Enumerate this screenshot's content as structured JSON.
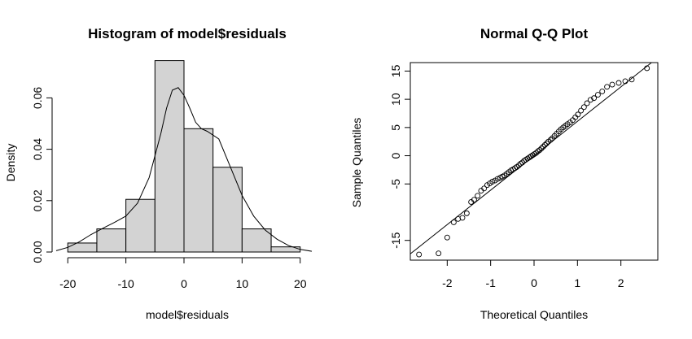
{
  "chart_data": [
    {
      "type": "histogram",
      "title": "Histogram of model$residuals",
      "xlabel": "model$residuals",
      "ylabel": "Density",
      "bins": [
        {
          "start": -20,
          "end": -15,
          "density": 0.0035
        },
        {
          "start": -15,
          "end": -10,
          "density": 0.009
        },
        {
          "start": -10,
          "end": -5,
          "density": 0.0205
        },
        {
          "start": -5,
          "end": 0,
          "density": 0.0745
        },
        {
          "start": 0,
          "end": 5,
          "density": 0.048
        },
        {
          "start": 5,
          "end": 10,
          "density": 0.033
        },
        {
          "start": 10,
          "end": 15,
          "density": 0.009
        },
        {
          "start": 15,
          "end": 20,
          "density": 0.002
        }
      ],
      "density_curve": {
        "x": [
          -22,
          -20,
          -18,
          -16,
          -14,
          -12,
          -10,
          -8,
          -6,
          -4,
          -3,
          -2,
          -1,
          0,
          1,
          2,
          3,
          4,
          6,
          8,
          10,
          12,
          14,
          16,
          18,
          20,
          22
        ],
        "y": [
          0.0005,
          0.0018,
          0.004,
          0.0068,
          0.0092,
          0.0115,
          0.014,
          0.019,
          0.029,
          0.046,
          0.056,
          0.063,
          0.064,
          0.061,
          0.056,
          0.0505,
          0.048,
          0.047,
          0.044,
          0.033,
          0.022,
          0.014,
          0.0085,
          0.005,
          0.0025,
          0.001,
          0.0003
        ]
      },
      "xticks": [
        "-20",
        "-10",
        "0",
        "10",
        "20"
      ],
      "xtick_values": [
        -20,
        -10,
        0,
        10,
        20
      ],
      "yticks": [
        "0.00",
        "0.02",
        "0.04",
        "0.06"
      ],
      "ytick_values": [
        0.0,
        0.02,
        0.04,
        0.06
      ],
      "xlim": [
        -22,
        22
      ],
      "ylim": [
        0,
        0.075
      ],
      "bar_color": "#d3d3d3",
      "grid": false
    },
    {
      "type": "scatter",
      "title": "Normal Q-Q Plot",
      "xlabel": "Theoretical Quantiles",
      "ylabel": "Sample Quantiles",
      "points": {
        "x": [
          -2.65,
          -2.2,
          -2.0,
          -1.85,
          -1.75,
          -1.65,
          -1.55,
          -1.45,
          -1.38,
          -1.3,
          -1.22,
          -1.15,
          -1.08,
          -1.02,
          -0.96,
          -0.9,
          -0.84,
          -0.78,
          -0.73,
          -0.68,
          -0.63,
          -0.58,
          -0.53,
          -0.48,
          -0.44,
          -0.4,
          -0.35,
          -0.31,
          -0.27,
          -0.23,
          -0.19,
          -0.15,
          -0.11,
          -0.07,
          -0.03,
          0.01,
          0.05,
          0.09,
          0.13,
          0.17,
          0.21,
          0.25,
          0.29,
          0.33,
          0.38,
          0.42,
          0.47,
          0.52,
          0.57,
          0.62,
          0.67,
          0.72,
          0.77,
          0.83,
          0.89,
          0.95,
          1.01,
          1.08,
          1.15,
          1.22,
          1.3,
          1.38,
          1.47,
          1.57,
          1.68,
          1.8,
          1.95,
          2.1,
          2.25,
          2.6
        ],
        "y": [
          -17.5,
          -17.3,
          -14.5,
          -11.8,
          -11.2,
          -11.0,
          -10.2,
          -8.2,
          -7.8,
          -7.1,
          -6.2,
          -5.8,
          -5.2,
          -4.9,
          -4.6,
          -4.4,
          -4.1,
          -3.9,
          -3.7,
          -3.5,
          -3.2,
          -2.9,
          -2.6,
          -2.4,
          -2.2,
          -2.0,
          -1.7,
          -1.4,
          -1.2,
          -0.9,
          -0.7,
          -0.5,
          -0.3,
          -0.1,
          0.1,
          0.3,
          0.5,
          0.8,
          1.0,
          1.3,
          1.6,
          1.9,
          2.2,
          2.5,
          2.8,
          3.1,
          3.5,
          3.9,
          4.3,
          4.7,
          5.0,
          5.3,
          5.6,
          5.9,
          6.3,
          6.8,
          7.3,
          8.0,
          8.6,
          9.3,
          9.9,
          10.2,
          10.8,
          11.4,
          12.2,
          12.6,
          12.9,
          13.2,
          13.5,
          15.5
        ],
        "marker": "open-circle"
      },
      "reference_line": {
        "intercept": 0.0,
        "slope": 6.1
      },
      "xticks": [
        "-2",
        "-1",
        "0",
        "1",
        "2"
      ],
      "xtick_values": [
        -2,
        -1,
        0,
        1,
        2
      ],
      "yticks": [
        "-15",
        "-5",
        "0",
        "5",
        "10",
        "15"
      ],
      "ytick_values": [
        -15,
        -5,
        0,
        5,
        10,
        15
      ],
      "xlim": [
        -2.85,
        2.85
      ],
      "ylim": [
        -18.5,
        16.5
      ],
      "grid": false
    }
  ]
}
